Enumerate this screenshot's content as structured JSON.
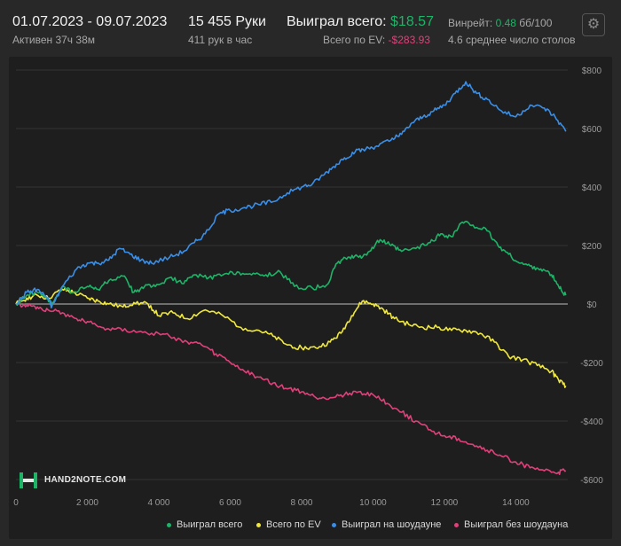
{
  "header": {
    "date_range": "01.07.2023 - 09.07.2023",
    "active": "Активен 37ч 38м",
    "hands": "15 455 Руки",
    "hands_per_hour": "411 рук в час",
    "won_total_label": "Выиграл всего:",
    "won_total_value": "$18.57",
    "ev_total_label": "Всего по EV:",
    "ev_total_value": "-$283.93",
    "winrate_label": "Винрейт:",
    "winrate_value": "0.48",
    "winrate_unit": "бб/100",
    "avg_tables": "4.6 среднее число столов",
    "settings_icon": "gear-icon"
  },
  "logo": {
    "text": "HAND2NOTE.COM"
  },
  "colors": {
    "won_total": "#1db468",
    "ev": "#f0e83c",
    "showdown": "#3a8ee6",
    "non_showdown": "#e0407a",
    "winrate": "#1db468",
    "ev_value": "#e0407a"
  },
  "chart_data": {
    "type": "line",
    "xlim": [
      0,
      15455
    ],
    "ylim": [
      -620,
      800
    ],
    "x_ticks": [
      0,
      2000,
      4000,
      6000,
      8000,
      10000,
      12000,
      14000
    ],
    "x_tick_labels": [
      "0",
      "2 000",
      "4 000",
      "6 000",
      "8 000",
      "10 000",
      "12 000",
      "14 000"
    ],
    "y_ticks": [
      800,
      600,
      400,
      200,
      0,
      -200,
      -400,
      -600
    ],
    "y_tick_labels": [
      "$800",
      "$600",
      "$400",
      "$200",
      "$0",
      "-$200",
      "-$400",
      "-$600"
    ],
    "grid": true,
    "legend_position": "bottom",
    "series": [
      {
        "name": "Выиграл всего",
        "key": "won_total",
        "points": [
          [
            0,
            0
          ],
          [
            300,
            30
          ],
          [
            600,
            40
          ],
          [
            900,
            15
          ],
          [
            1000,
            0
          ],
          [
            1300,
            60
          ],
          [
            1600,
            40
          ],
          [
            2000,
            60
          ],
          [
            2300,
            50
          ],
          [
            2600,
            80
          ],
          [
            3000,
            95
          ],
          [
            3300,
            40
          ],
          [
            3600,
            60
          ],
          [
            3900,
            60
          ],
          [
            4300,
            90
          ],
          [
            4700,
            70
          ],
          [
            5000,
            100
          ],
          [
            5400,
            90
          ],
          [
            5800,
            100
          ],
          [
            6200,
            110
          ],
          [
            6600,
            100
          ],
          [
            7000,
            100
          ],
          [
            7400,
            110
          ],
          [
            7800,
            60
          ],
          [
            8300,
            55
          ],
          [
            8700,
            65
          ],
          [
            9000,
            140
          ],
          [
            9300,
            160
          ],
          [
            9600,
            160
          ],
          [
            9900,
            180
          ],
          [
            10200,
            220
          ],
          [
            10500,
            200
          ],
          [
            10800,
            180
          ],
          [
            11200,
            190
          ],
          [
            11600,
            210
          ],
          [
            11900,
            240
          ],
          [
            12200,
            230
          ],
          [
            12500,
            280
          ],
          [
            12800,
            270
          ],
          [
            13200,
            250
          ],
          [
            13500,
            200
          ],
          [
            13800,
            170
          ],
          [
            14100,
            140
          ],
          [
            14400,
            130
          ],
          [
            14700,
            120
          ],
          [
            15000,
            100
          ],
          [
            15200,
            60
          ],
          [
            15400,
            30
          ]
        ]
      },
      {
        "name": "Всего по EV",
        "key": "ev",
        "points": [
          [
            0,
            0
          ],
          [
            300,
            20
          ],
          [
            600,
            30
          ],
          [
            900,
            20
          ],
          [
            1300,
            50
          ],
          [
            1600,
            40
          ],
          [
            2000,
            20
          ],
          [
            2300,
            10
          ],
          [
            2600,
            0
          ],
          [
            3000,
            -10
          ],
          [
            3300,
            5
          ],
          [
            3700,
            0
          ],
          [
            4000,
            -40
          ],
          [
            4400,
            -30
          ],
          [
            4800,
            -50
          ],
          [
            5300,
            -20
          ],
          [
            5800,
            -40
          ],
          [
            6300,
            -80
          ],
          [
            6800,
            -90
          ],
          [
            7200,
            -110
          ],
          [
            7600,
            -140
          ],
          [
            8000,
            -150
          ],
          [
            8400,
            -150
          ],
          [
            8800,
            -130
          ],
          [
            9100,
            -100
          ],
          [
            9400,
            -40
          ],
          [
            9700,
            10
          ],
          [
            10000,
            0
          ],
          [
            10300,
            -20
          ],
          [
            10600,
            -50
          ],
          [
            11000,
            -70
          ],
          [
            11400,
            -80
          ],
          [
            11800,
            -80
          ],
          [
            12200,
            -90
          ],
          [
            12600,
            -90
          ],
          [
            13000,
            -100
          ],
          [
            13400,
            -130
          ],
          [
            13800,
            -180
          ],
          [
            14200,
            -190
          ],
          [
            14600,
            -210
          ],
          [
            15000,
            -230
          ],
          [
            15200,
            -260
          ],
          [
            15400,
            -280
          ]
        ]
      },
      {
        "name": "Выиграл на шоудауне",
        "key": "showdown",
        "points": [
          [
            0,
            0
          ],
          [
            300,
            40
          ],
          [
            600,
            50
          ],
          [
            900,
            20
          ],
          [
            1000,
            -10
          ],
          [
            1300,
            60
          ],
          [
            1700,
            120
          ],
          [
            2000,
            140
          ],
          [
            2300,
            140
          ],
          [
            2600,
            150
          ],
          [
            2900,
            190
          ],
          [
            3200,
            170
          ],
          [
            3500,
            150
          ],
          [
            3800,
            140
          ],
          [
            4300,
            160
          ],
          [
            4700,
            180
          ],
          [
            5000,
            210
          ],
          [
            5300,
            240
          ],
          [
            5700,
            310
          ],
          [
            6000,
            320
          ],
          [
            6400,
            330
          ],
          [
            6800,
            340
          ],
          [
            7200,
            350
          ],
          [
            7600,
            380
          ],
          [
            8000,
            400
          ],
          [
            8300,
            410
          ],
          [
            8600,
            440
          ],
          [
            8900,
            470
          ],
          [
            9200,
            500
          ],
          [
            9500,
            520
          ],
          [
            9800,
            530
          ],
          [
            10100,
            540
          ],
          [
            10500,
            560
          ],
          [
            10800,
            580
          ],
          [
            11100,
            620
          ],
          [
            11400,
            640
          ],
          [
            11700,
            660
          ],
          [
            12000,
            680
          ],
          [
            12300,
            720
          ],
          [
            12600,
            760
          ],
          [
            12900,
            720
          ],
          [
            13200,
            700
          ],
          [
            13600,
            660
          ],
          [
            14000,
            640
          ],
          [
            14400,
            680
          ],
          [
            14800,
            670
          ],
          [
            15100,
            640
          ],
          [
            15400,
            590
          ]
        ]
      },
      {
        "name": "Выиграл без шоудауна",
        "key": "non_showdown",
        "points": [
          [
            0,
            0
          ],
          [
            300,
            -5
          ],
          [
            600,
            -10
          ],
          [
            900,
            -20
          ],
          [
            1300,
            -30
          ],
          [
            1700,
            -50
          ],
          [
            2000,
            -60
          ],
          [
            2400,
            -80
          ],
          [
            2800,
            -85
          ],
          [
            3300,
            -90
          ],
          [
            3800,
            -100
          ],
          [
            4300,
            -110
          ],
          [
            4800,
            -130
          ],
          [
            5200,
            -140
          ],
          [
            5600,
            -170
          ],
          [
            6000,
            -200
          ],
          [
            6400,
            -230
          ],
          [
            6800,
            -250
          ],
          [
            7200,
            -270
          ],
          [
            7600,
            -290
          ],
          [
            8000,
            -300
          ],
          [
            8400,
            -320
          ],
          [
            8800,
            -320
          ],
          [
            9200,
            -310
          ],
          [
            9600,
            -300
          ],
          [
            10000,
            -310
          ],
          [
            10400,
            -340
          ],
          [
            10800,
            -370
          ],
          [
            11200,
            -400
          ],
          [
            11600,
            -430
          ],
          [
            12000,
            -450
          ],
          [
            12400,
            -460
          ],
          [
            12800,
            -480
          ],
          [
            13200,
            -500
          ],
          [
            13600,
            -520
          ],
          [
            14000,
            -540
          ],
          [
            14400,
            -560
          ],
          [
            14800,
            -570
          ],
          [
            15200,
            -575
          ],
          [
            15400,
            -570
          ]
        ]
      }
    ]
  }
}
